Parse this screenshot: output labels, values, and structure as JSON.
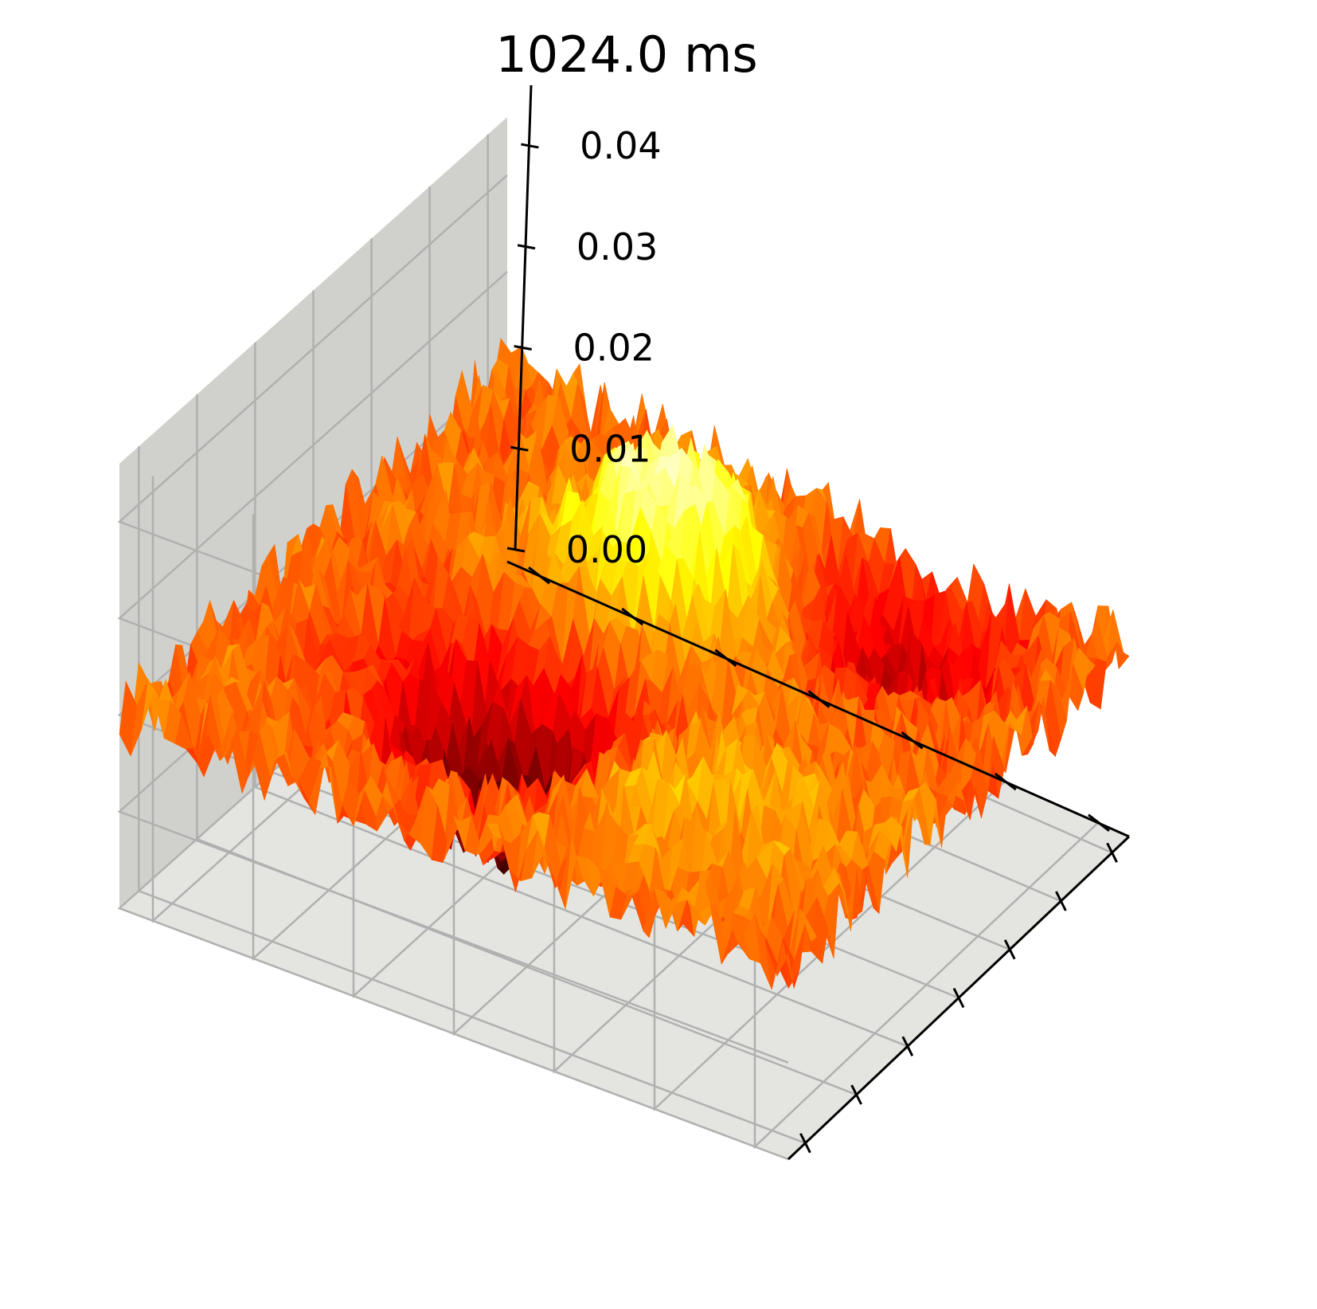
{
  "chart_data": {
    "type": "surface",
    "title": "1024.0 ms",
    "xlabel": "",
    "ylabel": "",
    "zlabel": "",
    "colormap": "hot",
    "grid": true,
    "pane_color": "#d0d1cc",
    "grid_color": "#b0b0b0",
    "zlim": [
      0,
      0.046
    ],
    "z_ticks": [
      0.0,
      0.01,
      0.02,
      0.03,
      0.04
    ],
    "z_tick_labels": [
      "0.00",
      "0.01",
      "0.02",
      "0.03",
      "0.04"
    ],
    "x_tick_count": 7,
    "y_tick_count": 7,
    "x_tick_labels": [],
    "y_tick_labels": [],
    "surface": {
      "base_level": 0.02,
      "noise_amplitude": 0.004,
      "features": [
        {
          "kind": "peak",
          "u": 0.68,
          "v": 0.55,
          "height": 0.014,
          "spread": 0.11
        },
        {
          "kind": "dip",
          "u": 0.35,
          "v": 0.62,
          "height": -0.014,
          "spread": 0.12
        },
        {
          "kind": "dip",
          "u": 0.82,
          "v": 0.28,
          "height": -0.008,
          "spread": 0.12
        },
        {
          "kind": "peak",
          "u": 0.25,
          "v": 0.25,
          "height": 0.004,
          "spread": 0.12
        }
      ]
    }
  }
}
